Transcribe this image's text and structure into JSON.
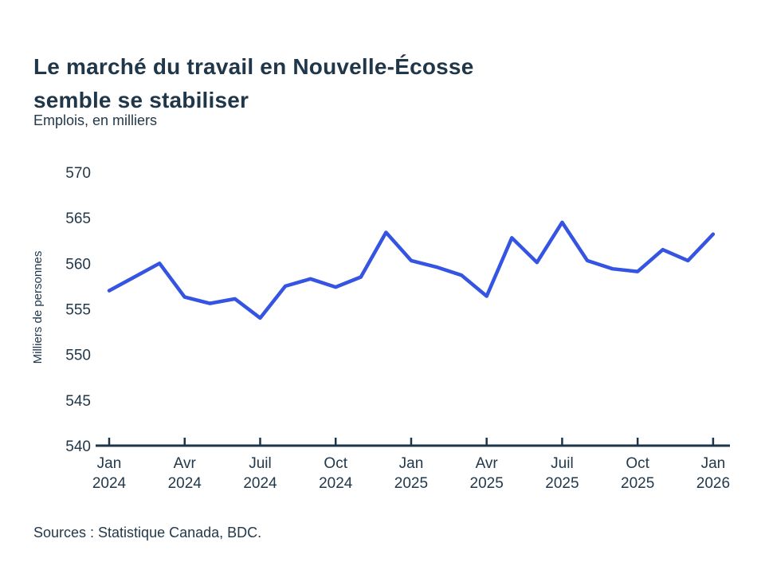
{
  "page": {
    "background": "#ffffff"
  },
  "header": {
    "title": "Le marché du travail en Nouvelle-Écosse\nsemble se stabiliser",
    "subtitle": "Emplois, en milliers"
  },
  "footer": {
    "source": "Sources : Statistique Canada, BDC."
  },
  "chart_data": {
    "type": "line",
    "title": "Le marché du travail en Nouvelle-Écosse semble se stabiliser",
    "subtitle": "Emplois, en milliers",
    "ylabel": "Milliers de personnes",
    "ylim": [
      540,
      570
    ],
    "y_ticks": [
      540,
      545,
      550,
      555,
      560,
      565,
      570
    ],
    "grid": false,
    "legend": "none",
    "line_color": "#3454e1",
    "axis_color": "#1e3547",
    "text_color": "#22394b",
    "x": [
      "2024-01",
      "2024-02",
      "2024-03",
      "2024-04",
      "2024-05",
      "2024-06",
      "2024-07",
      "2024-08",
      "2024-09",
      "2024-10",
      "2024-11",
      "2024-12",
      "2025-01",
      "2025-02",
      "2025-03",
      "2025-04",
      "2025-05",
      "2025-06",
      "2025-07",
      "2025-08",
      "2025-09",
      "2025-10",
      "2025-11",
      "2025-12",
      "2026-01"
    ],
    "series": [
      {
        "name": "Emplois, en milliers",
        "values": [
          557.0,
          558.5,
          560.0,
          556.3,
          555.6,
          556.1,
          554.0,
          557.5,
          558.3,
          557.4,
          558.5,
          563.4,
          560.3,
          559.6,
          558.7,
          556.4,
          562.8,
          560.1,
          564.5,
          560.3,
          559.4,
          559.1,
          561.5,
          560.3,
          563.2
        ]
      }
    ],
    "x_ticks": [
      {
        "index": 0,
        "month": "Jan",
        "year": "2024"
      },
      {
        "index": 3,
        "month": "Avr",
        "year": "2024"
      },
      {
        "index": 6,
        "month": "Juil",
        "year": "2024"
      },
      {
        "index": 9,
        "month": "Oct",
        "year": "2024"
      },
      {
        "index": 12,
        "month": "Jan",
        "year": "2025"
      },
      {
        "index": 15,
        "month": "Avr",
        "year": "2025"
      },
      {
        "index": 18,
        "month": "Juil",
        "year": "2025"
      },
      {
        "index": 21,
        "month": "Oct",
        "year": "2025"
      },
      {
        "index": 24,
        "month": "Jan",
        "year": "2026"
      }
    ]
  }
}
